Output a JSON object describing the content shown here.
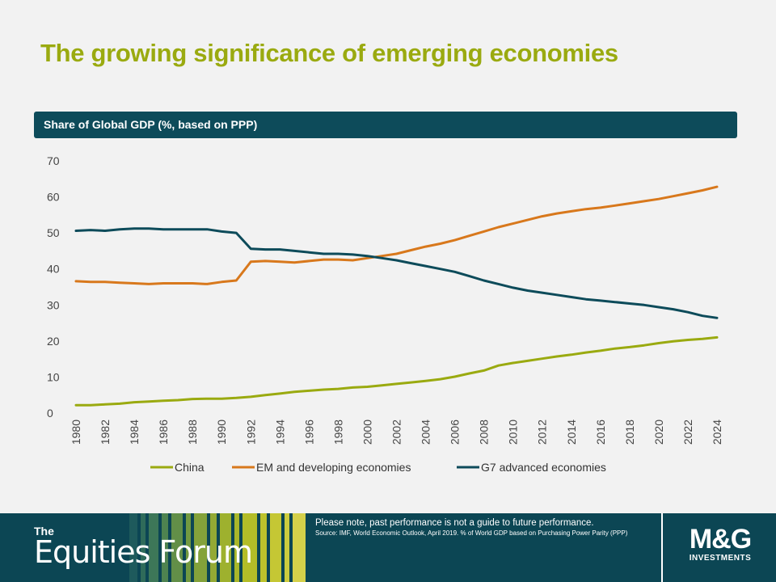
{
  "slide": {
    "title": "The growing significance of emerging economies"
  },
  "chart_data": {
    "type": "line",
    "title": "Share of Global  GDP (%, based on PPP)",
    "xlabel": "",
    "ylabel": "",
    "ylim": [
      0,
      70
    ],
    "yticks": [
      0,
      10,
      20,
      30,
      40,
      50,
      60,
      70
    ],
    "xticks": [
      1980,
      1982,
      1984,
      1986,
      1988,
      1990,
      1992,
      1994,
      1996,
      1998,
      2000,
      2002,
      2004,
      2006,
      2008,
      2010,
      2012,
      2014,
      2016,
      2018,
      2020,
      2022,
      2024
    ],
    "x": [
      1980,
      1981,
      1982,
      1983,
      1984,
      1985,
      1986,
      1987,
      1988,
      1989,
      1990,
      1991,
      1992,
      1993,
      1994,
      1995,
      1996,
      1997,
      1998,
      1999,
      2000,
      2001,
      2002,
      2003,
      2004,
      2005,
      2006,
      2007,
      2008,
      2009,
      2010,
      2011,
      2012,
      2013,
      2014,
      2015,
      2016,
      2017,
      2018,
      2019,
      2020,
      2021,
      2022,
      2023,
      2024
    ],
    "grid": false,
    "legend_position": "bottom",
    "series": [
      {
        "name": "China",
        "color": "#9aaa10",
        "values": [
          2.2,
          2.2,
          2.4,
          2.6,
          3.0,
          3.2,
          3.4,
          3.6,
          3.9,
          4.0,
          4.0,
          4.2,
          4.5,
          5.0,
          5.4,
          5.9,
          6.2,
          6.5,
          6.7,
          7.1,
          7.3,
          7.7,
          8.1,
          8.5,
          8.9,
          9.4,
          10.1,
          11.0,
          11.8,
          13.2,
          13.9,
          14.5,
          15.1,
          15.7,
          16.2,
          16.8,
          17.3,
          17.9,
          18.3,
          18.8,
          19.4,
          19.9,
          20.3,
          20.6,
          21.0
        ]
      },
      {
        "name": "EM and developing economies",
        "color": "#d8781c",
        "values": [
          36.6,
          36.4,
          36.4,
          36.2,
          36.0,
          35.8,
          36.0,
          36.0,
          36.0,
          35.8,
          36.4,
          36.8,
          42.0,
          42.2,
          42.0,
          41.8,
          42.2,
          42.6,
          42.6,
          42.4,
          43.0,
          43.6,
          44.2,
          45.2,
          46.2,
          47.0,
          48.0,
          49.2,
          50.4,
          51.6,
          52.6,
          53.6,
          54.6,
          55.4,
          56.0,
          56.6,
          57.0,
          57.6,
          58.2,
          58.8,
          59.4,
          60.2,
          61.0,
          61.8,
          62.8
        ]
      },
      {
        "name": "G7 advanced economies",
        "color": "#0d4b5a",
        "values": [
          50.6,
          50.8,
          50.6,
          51.0,
          51.2,
          51.2,
          51.0,
          51.0,
          51.0,
          51.0,
          50.4,
          50.0,
          45.6,
          45.4,
          45.4,
          45.0,
          44.6,
          44.2,
          44.2,
          44.0,
          43.6,
          43.0,
          42.4,
          41.6,
          40.8,
          40.0,
          39.2,
          38.0,
          36.8,
          35.8,
          34.8,
          34.0,
          33.4,
          32.8,
          32.2,
          31.6,
          31.2,
          30.8,
          30.4,
          30.0,
          29.4,
          28.8,
          28.0,
          27.0,
          26.4
        ]
      }
    ]
  },
  "footer": {
    "brand_the": "The",
    "brand_name": "Equities Forum",
    "disclaimer": "Please note, past performance  is not a guide to future performance.",
    "source": "Source: IMF, World Economic Outlook, April 2019. % of World GDP based on Purchasing Power Parity (PPP)",
    "logo_mark": "M&G",
    "logo_sub": "INVESTMENTS"
  }
}
